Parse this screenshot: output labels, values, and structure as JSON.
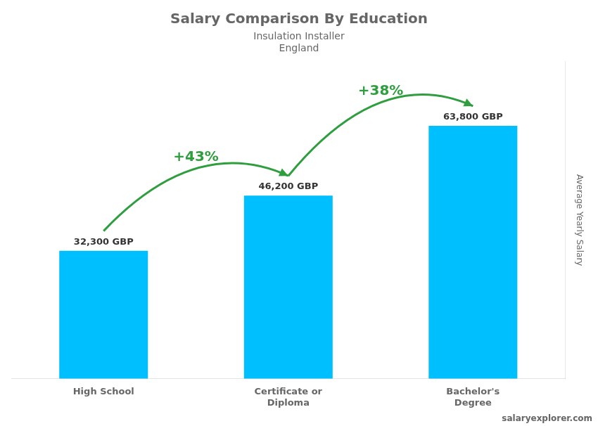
{
  "chart_data": {
    "type": "bar",
    "title": "Salary Comparison By Education",
    "subtitle": [
      "Insulation Installer",
      "England"
    ],
    "ylabel": "Average Yearly Salary",
    "categories": [
      "High School",
      "Certificate or\nDiploma",
      "Bachelor's\nDegree"
    ],
    "values": [
      32300,
      46200,
      63800
    ],
    "value_labels": [
      "32,300 GBP",
      "46,200 GBP",
      "63,800 GBP"
    ],
    "data_labels": true,
    "color": "#00BFFF",
    "ylim": [
      0,
      80000
    ],
    "tick_labels": "x",
    "grid": false,
    "annotations": [
      "+43%",
      "+38%"
    ],
    "source": "salaryexplorer.com"
  }
}
